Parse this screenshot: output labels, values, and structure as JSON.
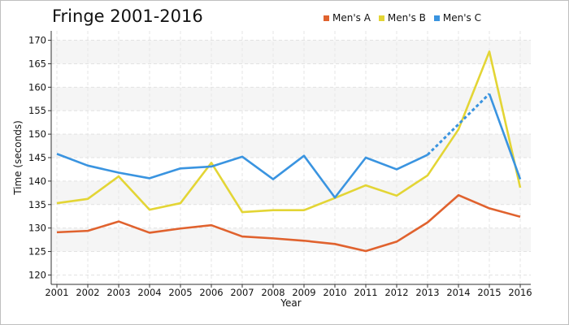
{
  "chart_data": {
    "type": "line",
    "title": "Fringe 2001-2016",
    "xlabel": "Year",
    "ylabel": "Time (seconds)",
    "x": [
      "2001",
      "2002",
      "2003",
      "2004",
      "2005",
      "2006",
      "2007",
      "2008",
      "2009",
      "2010",
      "2011",
      "2012",
      "2013",
      "2014",
      "2015",
      "2016"
    ],
    "ylim": [
      118,
      172
    ],
    "yticks": [
      120,
      125,
      130,
      135,
      140,
      145,
      150,
      155,
      160,
      165,
      170
    ],
    "grid": true,
    "legend_position": "top-right",
    "series": [
      {
        "name": "Men's A",
        "color": "#e0622e",
        "values": [
          129.1,
          129.4,
          131.4,
          129.0,
          129.9,
          130.6,
          128.2,
          127.8,
          127.3,
          126.6,
          125.1,
          127.1,
          131.2,
          137.0,
          134.2,
          132.4
        ]
      },
      {
        "name": "Men's B",
        "color": "#e3d535",
        "values": [
          135.3,
          136.2,
          141.0,
          133.9,
          135.3,
          143.9,
          133.4,
          133.8,
          133.8,
          136.4,
          139.1,
          136.9,
          141.2,
          151.0,
          167.6,
          138.6
        ]
      },
      {
        "name": "Men's C",
        "color": "#3a94e0",
        "values": [
          145.8,
          143.3,
          141.8,
          140.6,
          142.7,
          143.1,
          145.2,
          140.4,
          145.4,
          136.5,
          145.0,
          142.5,
          145.6,
          null,
          158.6,
          140.4
        ],
        "dashed_from_index": 12,
        "dashed_to_index": 14
      }
    ]
  }
}
